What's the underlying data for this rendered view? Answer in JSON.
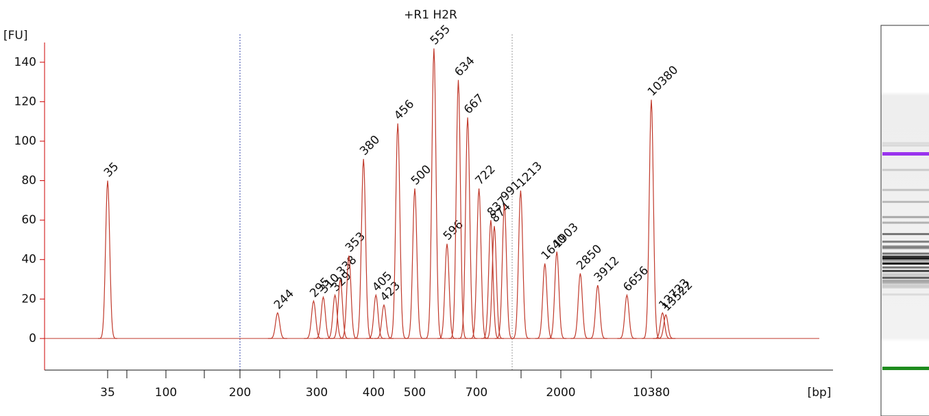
{
  "chart_data": {
    "type": "electropherogram",
    "title": "+R1 H2R",
    "xlabel": "[bp]",
    "ylabel": "[FU]",
    "x": [
      35,
      244,
      295,
      310,
      329,
      338,
      353,
      380,
      405,
      423,
      456,
      500,
      555,
      596,
      634,
      667,
      722,
      837,
      874,
      991,
      1213,
      1640,
      1903,
      2850,
      3912,
      6656,
      10380,
      12723,
      13522
    ],
    "values": [
      80,
      13,
      19,
      21,
      22,
      30,
      42,
      91,
      22,
      17,
      109,
      76,
      147,
      48,
      131,
      112,
      76,
      60,
      57,
      68,
      75,
      38,
      44,
      33,
      27,
      22,
      121,
      13,
      12
    ],
    "label_colors": [
      "#1e8c1e",
      "#000000",
      "#000000",
      "#000000",
      "#000000",
      "#000000",
      "#000000",
      "#000000",
      "#000000",
      "#000000",
      "#000000",
      "#000000",
      "#000000",
      "#000000",
      "#000000",
      "#000000",
      "#000000",
      "#000000",
      "#000000",
      "#000000",
      "#000000",
      "#000000",
      "#000000",
      "#000000",
      "#000000",
      "#000000",
      "#9933ee",
      "#000000",
      "#000000"
    ],
    "trace_color": "#c0392b",
    "axis_color": "#cc0000",
    "ylim": [
      -16,
      150
    ],
    "yticks": [
      0,
      20,
      40,
      60,
      80,
      100,
      120,
      140
    ],
    "xticks": [
      35,
      100,
      200,
      300,
      400,
      500,
      700,
      2000,
      10380
    ]
  }
}
